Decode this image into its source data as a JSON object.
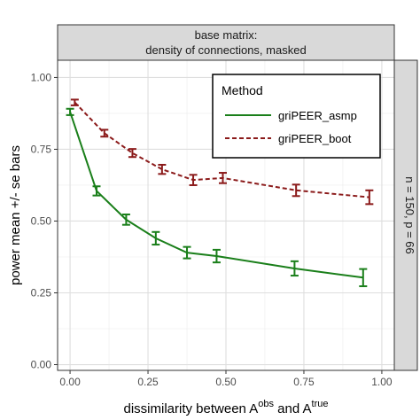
{
  "strip_top": {
    "line1": "base matrix:",
    "line2": "density of connections, masked"
  },
  "strip_right": "n = 150, p = 66",
  "chart_data": {
    "type": "line",
    "xlabel_prefix": "dissimilarity between A",
    "xlabel_sup1": "obs",
    "xlabel_mid": " and A",
    "xlabel_sup2": "true",
    "ylabel": "power mean +/- se bars",
    "xlim": [
      -0.04,
      1.04
    ],
    "ylim": [
      -0.02,
      1.06
    ],
    "x_ticks": [
      0,
      0.25,
      0.5,
      0.75,
      1
    ],
    "x_tick_labels": [
      "0.00",
      "0.25",
      "0.50",
      "0.75",
      "1.00"
    ],
    "y_ticks": [
      0,
      0.25,
      0.5,
      0.75,
      1
    ],
    "y_tick_labels": [
      "0.00",
      "0.25",
      "0.50",
      "0.75",
      "1.00"
    ],
    "grid": true,
    "legend": {
      "title": "Method",
      "placement": "top-right"
    },
    "series": [
      {
        "name": "griPEER_asmp",
        "color": "#1a7f1a",
        "dash": "solid",
        "points": [
          {
            "x": 0.0,
            "y": 0.88,
            "se": 0.011
          },
          {
            "x": 0.085,
            "y": 0.605,
            "se": 0.016
          },
          {
            "x": 0.18,
            "y": 0.505,
            "se": 0.018
          },
          {
            "x": 0.275,
            "y": 0.44,
            "se": 0.022
          },
          {
            "x": 0.375,
            "y": 0.39,
            "se": 0.02
          },
          {
            "x": 0.47,
            "y": 0.378,
            "se": 0.022
          },
          {
            "x": 0.72,
            "y": 0.335,
            "se": 0.025
          },
          {
            "x": 0.94,
            "y": 0.303,
            "se": 0.03
          }
        ]
      },
      {
        "name": "griPEER_boot",
        "color": "#8b1a1a",
        "dash": "dashed",
        "points": [
          {
            "x": 0.015,
            "y": 0.913,
            "se": 0.01
          },
          {
            "x": 0.11,
            "y": 0.806,
            "se": 0.012
          },
          {
            "x": 0.2,
            "y": 0.737,
            "se": 0.014
          },
          {
            "x": 0.295,
            "y": 0.68,
            "se": 0.016
          },
          {
            "x": 0.395,
            "y": 0.643,
            "se": 0.018
          },
          {
            "x": 0.49,
            "y": 0.65,
            "se": 0.018
          },
          {
            "x": 0.725,
            "y": 0.607,
            "se": 0.02
          },
          {
            "x": 0.96,
            "y": 0.583,
            "se": 0.024
          }
        ]
      }
    ]
  }
}
